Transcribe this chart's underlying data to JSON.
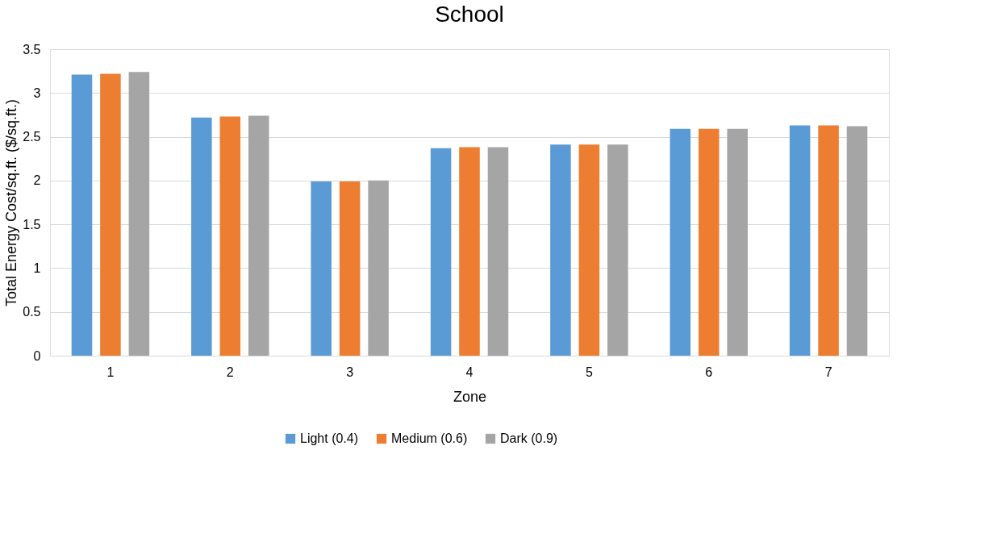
{
  "chart_data": {
    "type": "bar",
    "title": "School",
    "xlabel": "Zone",
    "ylabel": "Total Energy Cost/sq.ft. ($/sq.ft.)",
    "categories": [
      "1",
      "2",
      "3",
      "4",
      "5",
      "6",
      "7"
    ],
    "series": [
      {
        "name": "Light (0.4)",
        "color": "#5b9bd5",
        "values": [
          3.21,
          2.72,
          1.99,
          2.37,
          2.41,
          2.59,
          2.63
        ]
      },
      {
        "name": "Medium (0.6)",
        "color": "#ed7d31",
        "values": [
          3.22,
          2.73,
          1.99,
          2.38,
          2.41,
          2.59,
          2.63
        ]
      },
      {
        "name": "Dark (0.9)",
        "color": "#a5a5a5",
        "values": [
          3.24,
          2.74,
          2.0,
          2.38,
          2.41,
          2.59,
          2.62
        ]
      }
    ],
    "ylim": [
      0,
      3.5
    ],
    "yticks": [
      0,
      0.5,
      1,
      1.5,
      2,
      2.5,
      3,
      3.5
    ],
    "grid": "y",
    "legend": "bottom"
  }
}
